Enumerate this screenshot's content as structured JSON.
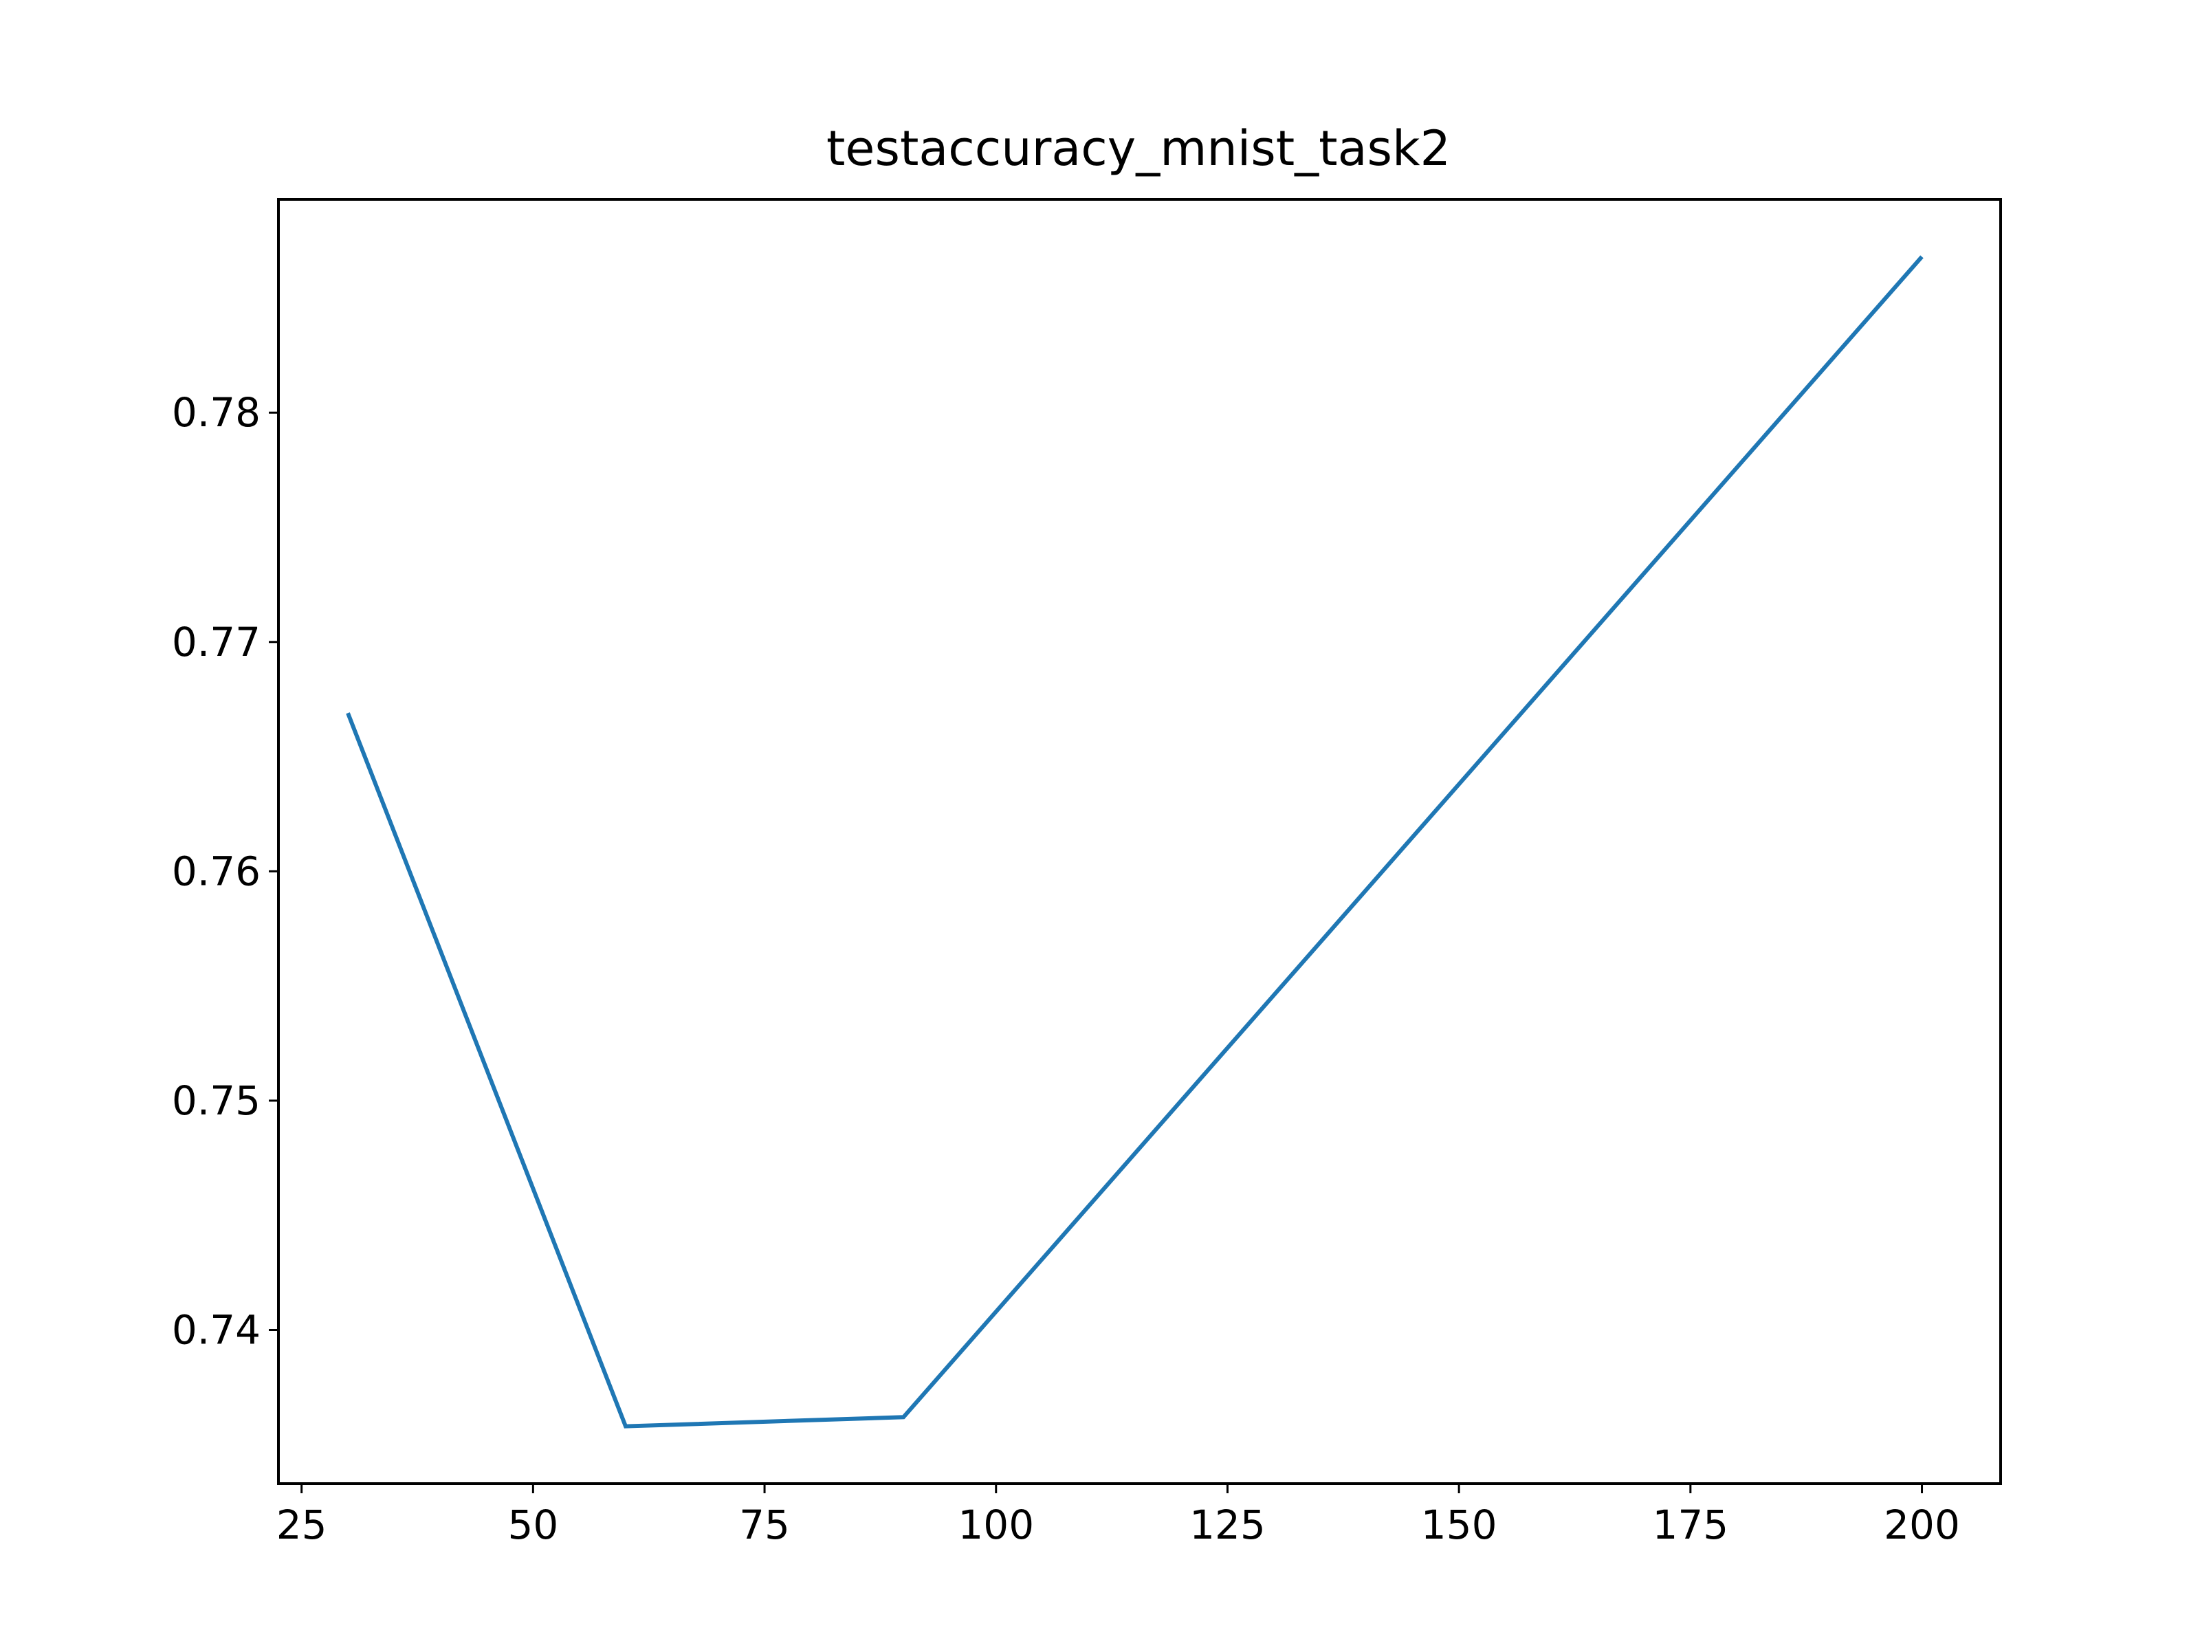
{
  "chart_data": {
    "type": "line",
    "title": "testaccuracy_mnist_task2",
    "xlabel": "",
    "ylabel": "",
    "x": [
      30,
      60,
      90,
      200
    ],
    "series": [
      {
        "values": [
          0.7669,
          0.7358,
          0.7362,
          0.7868
        ],
        "color": "#1f77b4"
      }
    ],
    "xlim": [
      22.5,
      208.5
    ],
    "ylim": [
      0.7333,
      0.7893
    ],
    "xticks": [
      25,
      50,
      75,
      100,
      125,
      150,
      175,
      200
    ],
    "xtick_labels": [
      "25",
      "50",
      "75",
      "100",
      "125",
      "150",
      "175",
      "200"
    ],
    "yticks": [
      0.74,
      0.75,
      0.76,
      0.77,
      0.78
    ],
    "ytick_labels": [
      "0.74",
      "0.75",
      "0.76",
      "0.77",
      "0.78"
    ],
    "grid": false,
    "legend": "none"
  }
}
